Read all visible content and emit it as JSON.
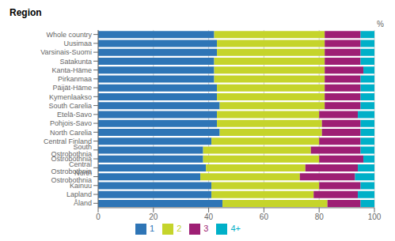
{
  "chart_data": {
    "type": "bar",
    "title": "Region",
    "xlabel": "%",
    "orientation": "horizontal",
    "stacked": true,
    "categories": [
      "Whole country",
      "Uusimaa",
      "Varsinais-Suomi",
      "Satakunta",
      "Kanta-Häme",
      "Pirkanmaa",
      "Päijät-Häme",
      "Kymenlaakso",
      "South Carelia",
      "Etelä-Savo",
      "Pohjois-Savo",
      "North Carelia",
      "Central Finland",
      "South Ostrobothnia",
      "Ostrobothnia",
      "Central Ostrobothnia",
      "North Ostrobothnia",
      "Kainuu",
      "Lapland",
      "Åland"
    ],
    "series": [
      {
        "name": "1",
        "color": "#2e75b6",
        "values": [
          42,
          43,
          43,
          42,
          42,
          42,
          43,
          43,
          44,
          43,
          43,
          44,
          41,
          38,
          38,
          39,
          37,
          41,
          41,
          45
        ]
      },
      {
        "name": "2",
        "color": "#c5d42b",
        "values": [
          40,
          39,
          39,
          40,
          40,
          40,
          39,
          39,
          38,
          37,
          38,
          37,
          39,
          39,
          42,
          36,
          36,
          39,
          37,
          38
        ]
      },
      {
        "name": "3",
        "color": "#9e1f74",
        "values": [
          13,
          13,
          13,
          13,
          14,
          13,
          13,
          13,
          13,
          14,
          14,
          14,
          15,
          18,
          16,
          19,
          20,
          15,
          16,
          12
        ]
      },
      {
        "name": "4+",
        "color": "#00b0c8",
        "values": [
          5,
          5,
          5,
          5,
          4,
          5,
          5,
          5,
          5,
          6,
          5,
          5,
          5,
          5,
          4,
          6,
          7,
          5,
          6,
          5
        ]
      }
    ],
    "xlim": [
      0,
      100
    ],
    "xticks": [
      0,
      20,
      40,
      60,
      80,
      100
    ],
    "grid": true,
    "legend": "bottom"
  }
}
